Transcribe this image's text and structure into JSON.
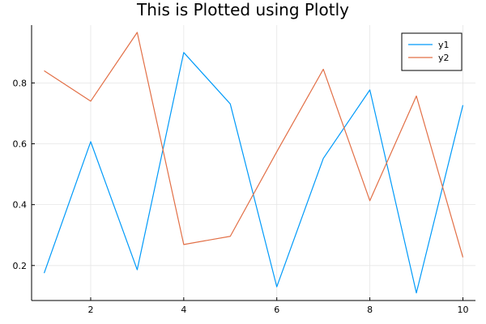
{
  "chart_data": {
    "type": "line",
    "title": "This is Plotted using Plotly",
    "xlabel": "",
    "ylabel": "",
    "xlim": [
      0.73,
      10.27
    ],
    "ylim": [
      0.085,
      0.99
    ],
    "xticks": [
      2,
      4,
      6,
      8,
      10
    ],
    "yticks": [
      0.2,
      0.4,
      0.6,
      0.8
    ],
    "ytick_labels": [
      "0.2",
      "0.4",
      "0.6",
      "0.8"
    ],
    "grid": true,
    "legend_position": "top-right",
    "x": [
      1,
      2,
      3,
      4,
      5,
      6,
      7,
      8,
      9,
      10
    ],
    "series": [
      {
        "name": "y1",
        "color": "#009af9",
        "values": [
          0.175,
          0.607,
          0.186,
          0.9,
          0.731,
          0.13,
          0.552,
          0.777,
          0.11,
          0.727
        ]
      },
      {
        "name": "y2",
        "color": "#e26f46",
        "values": [
          0.84,
          0.74,
          0.966,
          0.269,
          0.296,
          0.574,
          0.845,
          0.413,
          0.757,
          0.227
        ]
      }
    ]
  }
}
